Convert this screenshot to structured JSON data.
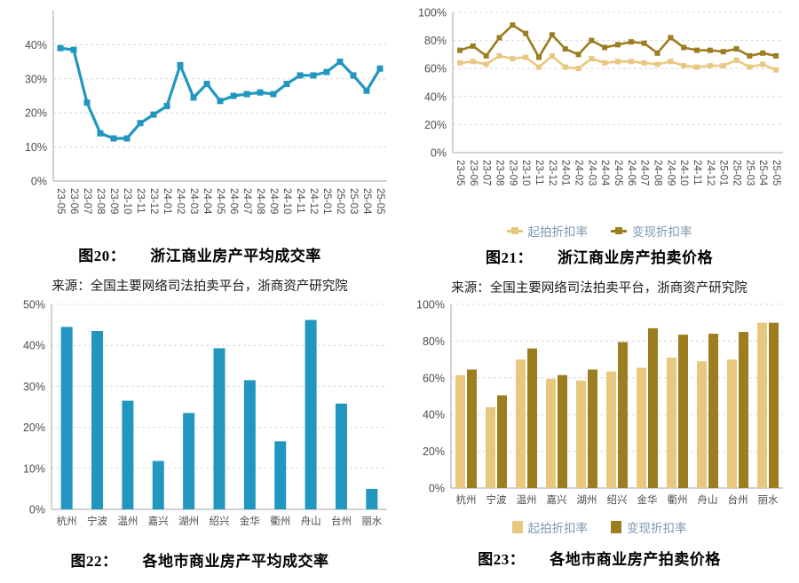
{
  "colors": {
    "teal": "#2196be",
    "light_gold": "#e8c87e",
    "dark_gold": "#9c7d1f",
    "legend_text": "#7d97b0"
  },
  "chart_data": [
    {
      "type": "line",
      "title": "图20： 浙江商业房产平均成交率",
      "caption": {
        "label": "图20：",
        "text": "浙江商业房产平均成交率"
      },
      "source": "来源：全国主要网络司法拍卖平台，浙商资产研究院",
      "xlabel": "",
      "ylabel": "",
      "ylim": [
        0,
        50
      ],
      "yticks": [
        0,
        10,
        20,
        30,
        40
      ],
      "grid": true,
      "legend_position": "none",
      "categories": [
        "23-05",
        "23-06",
        "23-07",
        "23-08",
        "23-09",
        "23-10",
        "23-11",
        "23-12",
        "24-01",
        "24-02",
        "24-03",
        "24-04",
        "24-05",
        "24-06",
        "24-07",
        "24-08",
        "24-09",
        "24-10",
        "24-11",
        "24-12",
        "25-01",
        "25-02",
        "25-03",
        "25-04",
        "25-05"
      ],
      "series": [
        {
          "name": "平均成交率",
          "color": "#2196be",
          "values": [
            39,
            38.5,
            23,
            14,
            12.5,
            12.5,
            17,
            19.5,
            22,
            34,
            24.5,
            28.5,
            23.5,
            25,
            25.5,
            26,
            25.5,
            28.5,
            31,
            31,
            32,
            35,
            31,
            26.5,
            33
          ]
        }
      ]
    },
    {
      "type": "line",
      "title": "图21： 浙江商业房产拍卖价格",
      "caption": {
        "label": "图21：",
        "text": "浙江商业房产拍卖价格"
      },
      "source": "来源：全国主要网络司法拍卖平台，浙商资产研究院",
      "xlabel": "",
      "ylabel": "",
      "ylim": [
        0,
        100
      ],
      "yticks": [
        0,
        20,
        40,
        60,
        80,
        100
      ],
      "grid": true,
      "legend_position": "bottom",
      "categories": [
        "23-05",
        "23-06",
        "23-07",
        "23-08",
        "23-09",
        "23-10",
        "23-11",
        "23-12",
        "24-01",
        "24-02",
        "24-03",
        "24-04",
        "24-05",
        "24-06",
        "24-07",
        "24-08",
        "24-09",
        "24-10",
        "24-11",
        "24-12",
        "25-01",
        "25-02",
        "25-03",
        "25-04",
        "25-05"
      ],
      "series": [
        {
          "name": "起拍折扣率",
          "color": "#e8c87e",
          "values": [
            64,
            65,
            63,
            69,
            67,
            68,
            61,
            69,
            61,
            60,
            67,
            64,
            65,
            65,
            64,
            63,
            65,
            62,
            61,
            62,
            62,
            66,
            61,
            63,
            59
          ]
        },
        {
          "name": "变现折扣率",
          "color": "#9c7d1f",
          "values": [
            73,
            76,
            69,
            82,
            91,
            85,
            68,
            84,
            74,
            70,
            80,
            75,
            77,
            79,
            78,
            71,
            82,
            75,
            73,
            73,
            72,
            74,
            69,
            71,
            69
          ]
        }
      ]
    },
    {
      "type": "bar",
      "title": "图22： 各地市商业房产平均成交率",
      "caption": {
        "label": "图22：",
        "text": "各地市商业房产平均成交率"
      },
      "source": "",
      "xlabel": "",
      "ylabel": "",
      "ylim": [
        0,
        50
      ],
      "yticks": [
        0,
        10,
        20,
        30,
        40,
        50
      ],
      "grid": true,
      "legend_position": "none",
      "categories": [
        "杭州",
        "宁波",
        "温州",
        "嘉兴",
        "湖州",
        "绍兴",
        "金华",
        "衢州",
        "舟山",
        "台州",
        "丽水"
      ],
      "series": [
        {
          "name": "平均成交率",
          "color": "#2196be",
          "values": [
            44.5,
            43.5,
            26.5,
            11.8,
            23.5,
            39.3,
            31.5,
            16.6,
            46.2,
            25.8,
            5
          ]
        }
      ]
    },
    {
      "type": "bar",
      "title": "图23： 各地市商业房产拍卖价格",
      "caption": {
        "label": "图23：",
        "text": "各地市商业房产拍卖价格"
      },
      "source": "",
      "xlabel": "",
      "ylabel": "",
      "ylim": [
        0,
        100
      ],
      "yticks": [
        0,
        20,
        40,
        60,
        80,
        100
      ],
      "grid": true,
      "legend_position": "bottom",
      "categories": [
        "杭州",
        "宁波",
        "温州",
        "嘉兴",
        "湖州",
        "绍兴",
        "金华",
        "衢州",
        "舟山",
        "台州",
        "丽水"
      ],
      "series": [
        {
          "name": "起拍折扣率",
          "color": "#e8c87e",
          "values": [
            61.5,
            44,
            70,
            59.5,
            58.5,
            63.5,
            65.5,
            71,
            69,
            70,
            90
          ]
        },
        {
          "name": "变现折扣率",
          "color": "#9c7d1f",
          "values": [
            64.5,
            50.5,
            76,
            61.5,
            64.5,
            79.5,
            87,
            83.5,
            84,
            85,
            90
          ]
        }
      ]
    }
  ]
}
